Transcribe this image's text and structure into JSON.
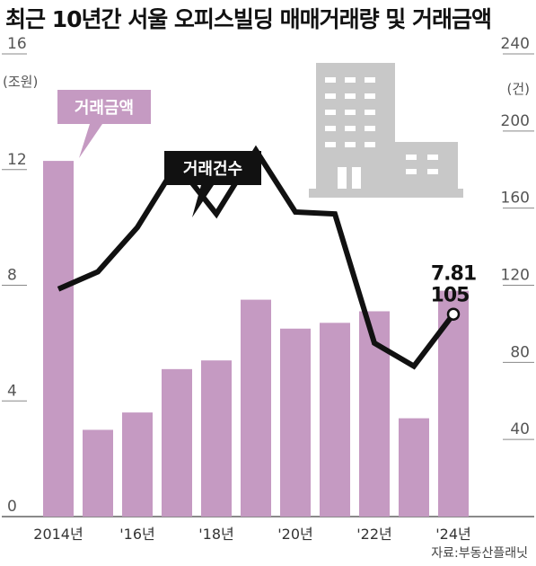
{
  "title": "최근 10년간 서울 오피스빌딩 매매거래량 및 거래금액",
  "source": "자료:부동산플래닛",
  "colors": {
    "bar": "#c59ac2",
    "line": "#111111",
    "building": "#c8c8c8",
    "badge_amount": "#c59ac2",
    "badge_count": "#111111"
  },
  "chart_data": {
    "type": "bar",
    "x": [
      "2014",
      "2015",
      "2016",
      "2017",
      "2018",
      "2019",
      "2020",
      "2021",
      "2022",
      "2023",
      "2024"
    ],
    "x_tick_labels": [
      {
        "index": 0,
        "text": "2014년"
      },
      {
        "index": 2,
        "text": "'16년"
      },
      {
        "index": 4,
        "text": "'18년"
      },
      {
        "index": 6,
        "text": "'20년"
      },
      {
        "index": 8,
        "text": "'22년"
      },
      {
        "index": 10,
        "text": "'24년"
      }
    ],
    "left_axis": {
      "unit": "(조원)",
      "min": 0,
      "max": 16,
      "ticks": [
        0,
        4,
        8,
        12,
        16
      ]
    },
    "right_axis": {
      "unit": "(건)",
      "min": 0,
      "max": 240,
      "ticks": [
        40,
        80,
        120,
        160,
        200,
        240
      ]
    },
    "series": [
      {
        "name": "거래금액",
        "type": "bar",
        "axis": "left",
        "values": [
          12.3,
          3.0,
          3.6,
          5.1,
          5.4,
          7.5,
          6.5,
          6.7,
          7.1,
          3.4,
          7.81
        ]
      },
      {
        "name": "거래건수",
        "type": "line",
        "axis": "right",
        "values": [
          118,
          127,
          150,
          183,
          157,
          190,
          158,
          157,
          90,
          78,
          105
        ]
      }
    ],
    "annotations": [
      {
        "series": "거래금액",
        "index": 10,
        "text": "7.81"
      },
      {
        "series": "거래건수",
        "index": 10,
        "text": "105"
      }
    ]
  }
}
